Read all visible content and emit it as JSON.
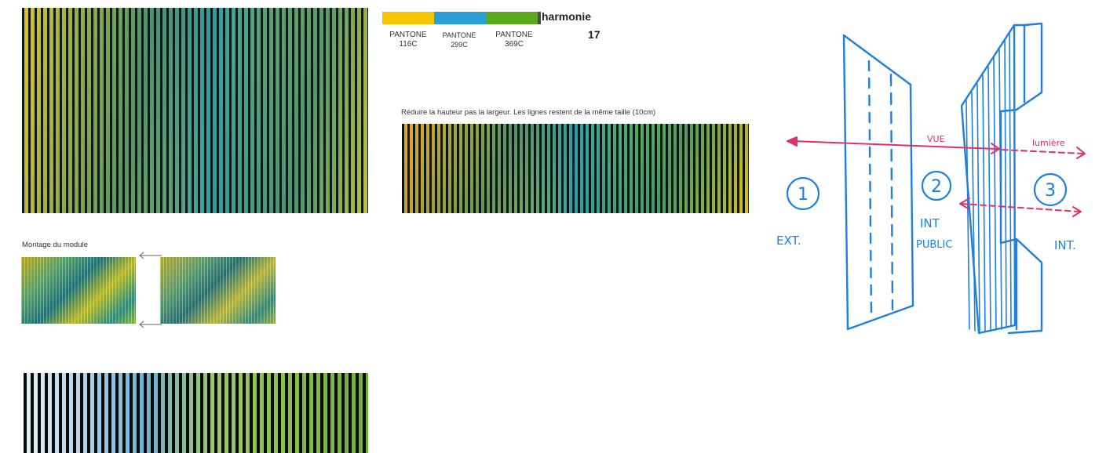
{
  "palette": {
    "title": "harmonie",
    "number": "17",
    "swatches": [
      {
        "code_line1": "PANTONE",
        "code_line2": "116C",
        "color": "#f5c400"
      },
      {
        "code_line1": "PANTONE",
        "code_line2": "299C",
        "color": "#2a9fd6"
      },
      {
        "code_line1": "PANTONE",
        "code_line2": "369C",
        "color": "#5ca81e"
      }
    ],
    "fill_color": "#4a4a4a"
  },
  "captions": {
    "reduce": "Réduire la hauteur pas la largeur. Les lignes restent de la même taille (10cm)",
    "assembly": "Montage du module"
  },
  "sketch": {
    "stroke_color": "#1e7fe0",
    "arrow_color": "#e0306a",
    "zones": [
      {
        "number": "1",
        "label": "EXT."
      },
      {
        "number": "2",
        "label_line1": "INT",
        "label_line2": "PUBLIC"
      },
      {
        "number": "3",
        "label": "INT."
      }
    ],
    "view_label": "VUE",
    "light_label": "lumière"
  }
}
